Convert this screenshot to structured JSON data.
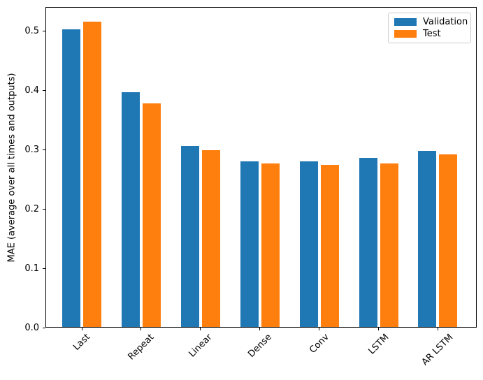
{
  "chart_data": {
    "type": "bar",
    "title": "",
    "categories": [
      "Last",
      "Repeat",
      "Linear",
      "Dense",
      "Conv",
      "LSTM",
      "AR LSTM"
    ],
    "series": [
      {
        "name": "Validation",
        "color": "#1f77b4",
        "values": [
          0.502,
          0.396,
          0.306,
          0.28,
          0.28,
          0.286,
          0.298
        ]
      },
      {
        "name": "Test",
        "color": "#ff7f0e",
        "values": [
          0.515,
          0.378,
          0.299,
          0.276,
          0.274,
          0.277,
          0.292
        ]
      }
    ],
    "xlabel": "",
    "ylabel": "MAE (average over all times and outputs)",
    "ylim": [
      0,
      0.54
    ],
    "yticks": [
      0.0,
      0.1,
      0.2,
      0.3,
      0.4,
      0.5
    ],
    "ytick_labels": [
      "0.0",
      "0.1",
      "0.2",
      "0.3",
      "0.4",
      "0.5"
    ],
    "xtick_rotation": 45,
    "grid": false,
    "legend_position": "upper right"
  }
}
